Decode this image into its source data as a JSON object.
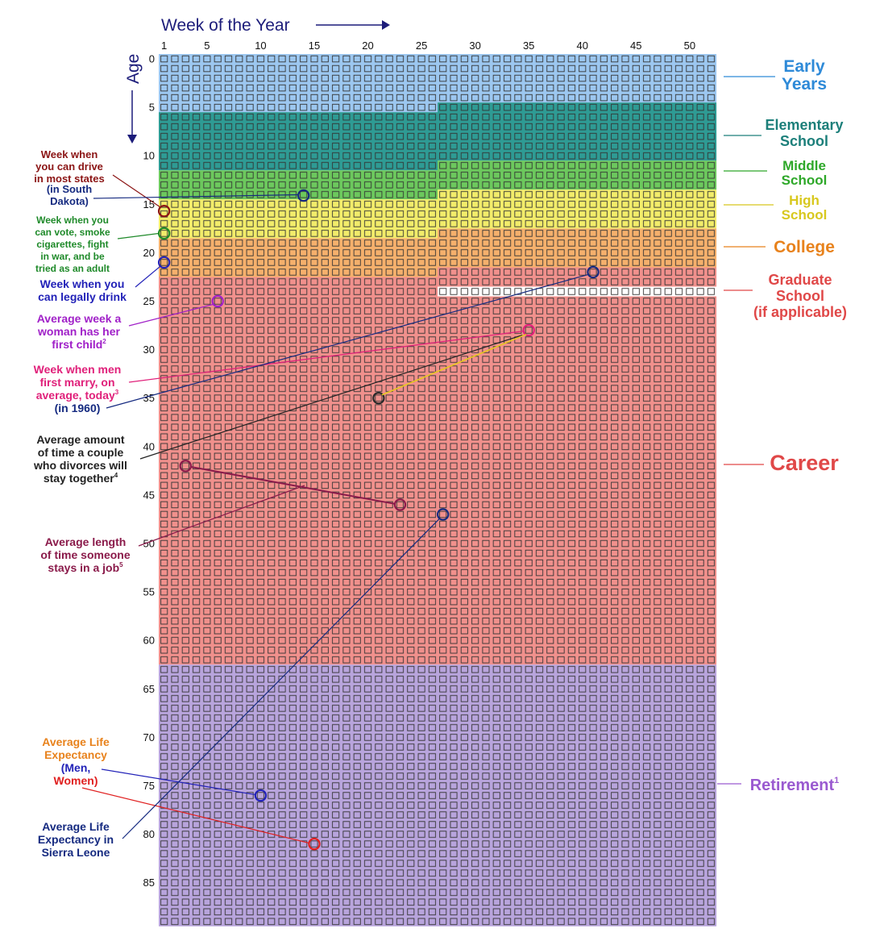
{
  "chart_data": {
    "type": "heatmap",
    "x_axis_title": "Week of the Year",
    "y_axis_title": "Age",
    "weeks": 52,
    "years": 90,
    "x_ticks": [
      "1",
      "5",
      "10",
      "15",
      "20",
      "25",
      "30",
      "35",
      "40",
      "45",
      "50"
    ],
    "x_tick_values": [
      1,
      5,
      10,
      15,
      20,
      25,
      30,
      35,
      40,
      45,
      50
    ],
    "y_ticks": [
      "0",
      "5",
      "10",
      "15",
      "20",
      "25",
      "30",
      "35",
      "40",
      "45",
      "50",
      "55",
      "60",
      "65",
      "70",
      "75",
      "80",
      "85"
    ],
    "y_tick_values": [
      0,
      5,
      10,
      15,
      20,
      25,
      30,
      35,
      40,
      45,
      50,
      55,
      60,
      65,
      70,
      75,
      80,
      85
    ],
    "phases": [
      {
        "name": "Early Years",
        "lines": [
          "Early",
          "Years"
        ],
        "color": "#2e8ad8",
        "fill": "#9cc7f0",
        "start": [
          0,
          1
        ],
        "end": [
          5,
          26
        ]
      },
      {
        "name": "Elementary School",
        "lines": [
          "Elementary",
          "School"
        ],
        "color": "#1c7f7a",
        "fill": "#2e9b94",
        "start": [
          5,
          27
        ],
        "end": [
          11,
          26
        ]
      },
      {
        "name": "Middle School",
        "lines": [
          "Middle",
          "School"
        ],
        "color": "#2ea829",
        "fill": "#6cc85d",
        "start": [
          11,
          27
        ],
        "end": [
          14,
          26
        ]
      },
      {
        "name": "High School",
        "lines": [
          "High",
          "School"
        ],
        "color": "#d8c81e",
        "fill": "#f2ec6a",
        "start": [
          14,
          27
        ],
        "end": [
          18,
          26
        ]
      },
      {
        "name": "College",
        "lines": [
          "College"
        ],
        "color": "#e8821c",
        "fill": "#f5b06c",
        "start": [
          18,
          27
        ],
        "end": [
          22,
          26
        ]
      },
      {
        "name": "Graduate School",
        "lines": [
          "Graduate",
          "School",
          "(if applicable)"
        ],
        "color": "#e04848",
        "fill": "#f0908c",
        "start": [
          22,
          27
        ],
        "end": [
          24,
          26
        ]
      },
      {
        "name": "Career",
        "lines": [
          "Career"
        ],
        "color": "#e04848",
        "fill": "#f0908c",
        "start": [
          25,
          1
        ],
        "end": [
          62,
          52
        ]
      },
      {
        "name": "Retirement",
        "lines": [
          "Retirement"
        ],
        "sup": "1",
        "color": "#9a5ad0",
        "fill": "#b8a4dc",
        "start": [
          63,
          1
        ],
        "end": [
          89,
          52
        ]
      }
    ],
    "events": [
      {
        "name": "driving",
        "lines": [
          "Week when",
          "you can drive",
          "in most states"
        ],
        "color": "#8b1414",
        "age": 15.7,
        "week": 1
      },
      {
        "name": "driving-south-dakota",
        "lines": [
          "(in South",
          "Dakota)"
        ],
        "color": "#152a80",
        "age": 14.1,
        "week": 14
      },
      {
        "name": "voting",
        "lines": [
          "Week when you",
          "can vote, smoke",
          "cigarettes, fight",
          "in war, and be",
          "tried as an adult"
        ],
        "color": "#1f8a2a",
        "age": 18,
        "week": 1
      },
      {
        "name": "legal-drinking",
        "lines": [
          "Week when you",
          "can legally drink"
        ],
        "color": "#2222b8",
        "age": 21,
        "week": 1
      },
      {
        "name": "first-child",
        "lines": [
          "Average week a",
          "woman has her",
          "first child"
        ],
        "sup": "2",
        "color": "#a020c8",
        "age": 25,
        "week": 6
      },
      {
        "name": "men-first-marry",
        "lines": [
          "Week when men",
          "first marry, on",
          "average, today"
        ],
        "sup": "3",
        "color": "#e0207a",
        "age": 28,
        "week": 35
      },
      {
        "name": "men-first-marry-1960",
        "lines": [
          "(in 1960)"
        ],
        "color": "#152a80",
        "age": 22,
        "week": 41
      },
      {
        "name": "divorce",
        "lines": [
          "Average amount",
          "of time a couple",
          "who divorces will",
          "stay together"
        ],
        "sup": "4",
        "color": "#222222",
        "age": 35,
        "week": 21
      },
      {
        "name": "job-length",
        "lines": [
          "Average length",
          "of time someone",
          "stays in a job"
        ],
        "sup": "5",
        "color": "#8a1a4a",
        "age_start": 42,
        "week_start": 3,
        "age": 46,
        "week": 23
      },
      {
        "name": "life-expectancy",
        "lines_segments": [
          [
            "Average Life",
            "Expectancy"
          ],
          [
            "(Men,"
          ],
          [
            "Women)"
          ]
        ],
        "color": "#e8821c",
        "men": {
          "age": 76,
          "week": 10,
          "color": "#2222b8"
        },
        "women": {
          "age": 81,
          "week": 15,
          "color": "#e02020"
        }
      },
      {
        "name": "sierra-leone",
        "lines": [
          "Average Life",
          "Expectancy in",
          "Sierra Leone"
        ],
        "color": "#152a80",
        "age": 47,
        "week": 27
      }
    ]
  },
  "colors": {
    "axis_title": "#1c1c7a",
    "tick": "#111111",
    "cell_stroke": "#333333"
  }
}
